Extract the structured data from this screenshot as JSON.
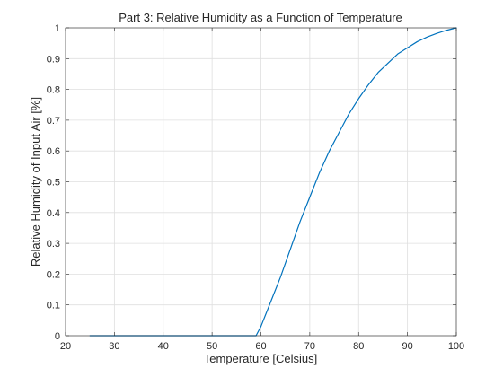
{
  "chart_data": {
    "type": "line",
    "title": "Part 3: Relative Humidity as a Function of Temperature",
    "xlabel": "Temperature [Celsius]",
    "ylabel": "Relative Humidity of Input Air [%]",
    "xlim": [
      20,
      100
    ],
    "ylim": [
      0,
      1
    ],
    "xticks": [
      20,
      30,
      40,
      50,
      60,
      70,
      80,
      90,
      100
    ],
    "yticks": [
      0,
      0.1,
      0.2,
      0.3,
      0.4,
      0.5,
      0.6,
      0.7,
      0.8,
      0.9,
      1
    ],
    "xtick_labels": [
      "20",
      "30",
      "40",
      "50",
      "60",
      "70",
      "80",
      "90",
      "100"
    ],
    "ytick_labels": [
      "0",
      "0.1",
      "0.2",
      "0.3",
      "0.4",
      "0.5",
      "0.6",
      "0.7",
      "0.8",
      "0.9",
      "1"
    ],
    "grid": true,
    "series": [
      {
        "color": "#0072BD",
        "x": [
          25,
          30,
          40,
          50,
          55,
          58,
          59,
          60,
          62,
          64,
          66,
          68,
          70,
          72,
          74,
          76,
          78,
          80,
          82,
          84,
          86,
          88,
          90,
          92,
          94,
          96,
          98,
          100
        ],
        "y": [
          0,
          0,
          0,
          0,
          0,
          0,
          0,
          0.03,
          0.11,
          0.19,
          0.28,
          0.37,
          0.45,
          0.53,
          0.6,
          0.66,
          0.72,
          0.77,
          0.815,
          0.855,
          0.885,
          0.915,
          0.935,
          0.955,
          0.97,
          0.982,
          0.992,
          1.0
        ]
      }
    ]
  }
}
